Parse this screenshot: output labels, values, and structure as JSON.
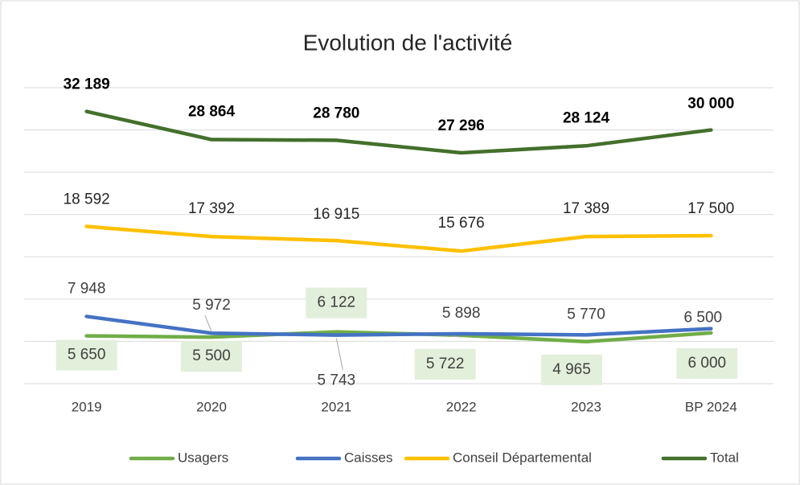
{
  "chart_data": {
    "type": "line",
    "title": "Evolution de l'activité",
    "categories": [
      "2019",
      "2020",
      "2021",
      "2022",
      "2023",
      "BP 2024"
    ],
    "series": [
      {
        "name": "Usagers",
        "color": "#70ad47",
        "values": [
          5650,
          5500,
          6122,
          5722,
          4965,
          6000
        ],
        "value_labels": [
          "5 650",
          "5 500",
          "6 122",
          "5 722",
          "4 965",
          "6 000"
        ]
      },
      {
        "name": "Caisses",
        "color": "#4472c4",
        "values": [
          7948,
          5972,
          5743,
          5898,
          5770,
          6500
        ],
        "value_labels": [
          "7 948",
          "5 972",
          "5 743",
          "5 898",
          "5 770",
          "6 500"
        ]
      },
      {
        "name": "Conseil Départemental",
        "color": "#ffc000",
        "values": [
          18592,
          17392,
          16915,
          15676,
          17389,
          17500
        ],
        "value_labels": [
          "18 592",
          "17 392",
          "16 915",
          "15 676",
          "17 389",
          "17 500"
        ]
      },
      {
        "name": "Total",
        "color": "#43702b",
        "values": [
          32189,
          28864,
          28780,
          27296,
          28124,
          30000
        ],
        "value_labels": [
          "32 189",
          "28 864",
          "28 780",
          "27 296",
          "28 124",
          "30 000"
        ]
      }
    ],
    "ylim": [
      0,
      35000
    ],
    "yticks": [
      0,
      5000,
      10000,
      15000,
      20000,
      25000,
      30000,
      35000
    ],
    "grid": true,
    "legend": "bottom"
  }
}
